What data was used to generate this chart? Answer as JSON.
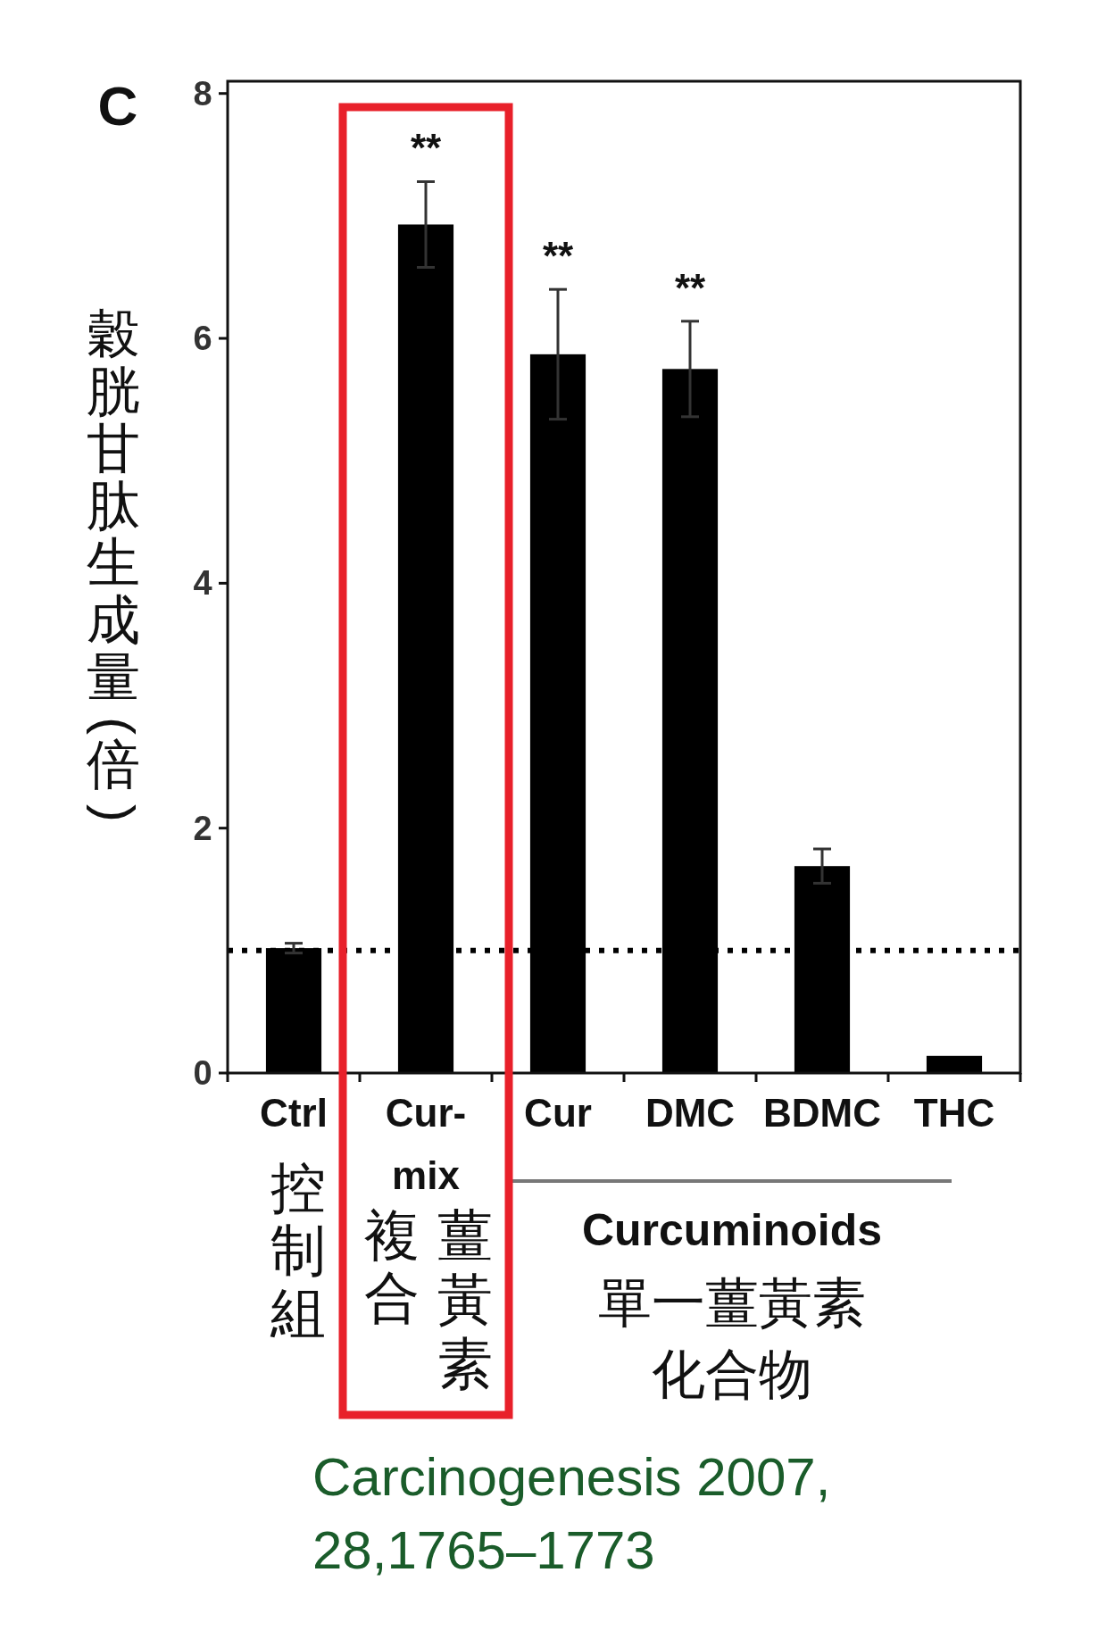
{
  "chart_data": {
    "type": "bar",
    "ylabel": "穀胱甘肽生成量(倍)",
    "categories": [
      "Ctrl",
      "Cur-mix",
      "Cur",
      "DMC",
      "BDMC",
      "THC"
    ],
    "values": [
      1.02,
      6.93,
      5.87,
      5.75,
      1.69,
      0.14
    ],
    "errors": [
      0.04,
      0.35,
      0.53,
      0.39,
      0.14,
      null
    ],
    "color": "#000000",
    "ylim": [
      0,
      8.1
    ],
    "yticks": [
      0,
      2,
      4,
      6,
      8
    ],
    "grid": false,
    "ref_lines": [
      {
        "axis": "y",
        "value": 1,
        "color": "#000000",
        "line_style": "dotted"
      }
    ],
    "annotations": [
      "C",
      "**",
      "**",
      "**",
      "控制組",
      "複合",
      "薑黃素",
      "Curcuminoids",
      "單一薑黃素",
      "化合物",
      "Carcinogenesis 2007,",
      "28,1765–1773"
    ]
  }
}
